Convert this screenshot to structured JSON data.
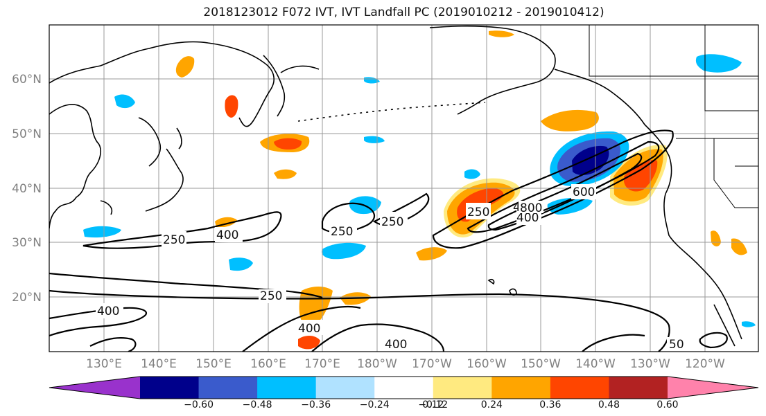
{
  "title": "2018123012 F072 IVT, IVT Landfall PC (2019010212 - 2019010412)",
  "lat_labels": [
    "60°N",
    "50°N",
    "40°N",
    "30°N",
    "20°N"
  ],
  "lon_labels": [
    "130°E",
    "140°E",
    "150°E",
    "160°E",
    "170°E",
    "180°W",
    "170°W",
    "160°W",
    "150°W",
    "140°W",
    "130°W",
    "120°W"
  ],
  "colorbar": {
    "colors": [
      "#9932cc",
      "#00008b",
      "#3a5bcc",
      "#00bfff",
      "#b0e2ff",
      "#ffffff",
      "#ffea80",
      "#ffa500",
      "#ff4500",
      "#b22222",
      "#ff82ab"
    ],
    "tick_labels": [
      "−0.60",
      "−0.48",
      "−0.36",
      "−0.24",
      "−0.12",
      "0.12",
      "0.24",
      "0.36",
      "0.48",
      "0.60"
    ]
  },
  "contour_labels": [
    "250",
    "400",
    "250",
    "250",
    "250",
    "400",
    "600",
    "400",
    "800",
    "400",
    "400",
    "250",
    "400",
    "50"
  ]
}
